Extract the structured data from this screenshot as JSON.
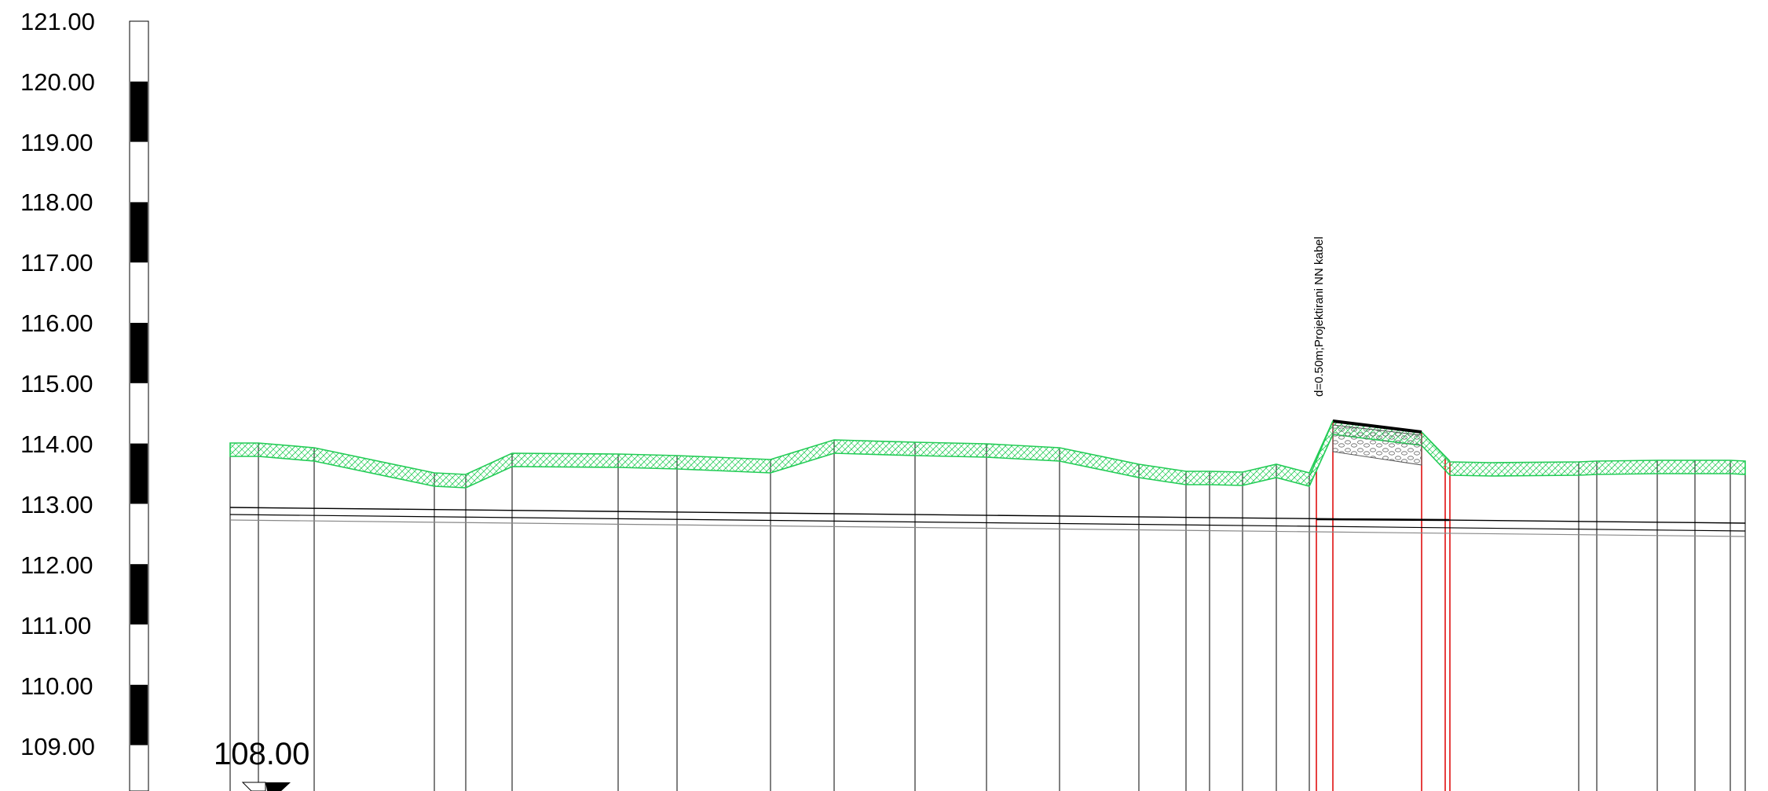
{
  "elevation_axis": {
    "labels": [
      "121.00",
      "120.00",
      "119.00",
      "118.00",
      "117.00",
      "116.00",
      "115.00",
      "114.00",
      "113.00",
      "112.00",
      "111.00",
      "110.00",
      "109.00"
    ]
  },
  "datum": {
    "label": "108.00"
  },
  "annotation": {
    "text": "d=0.50m;Projektirani NN kabel"
  },
  "colors": {
    "terrain": "#22cc55",
    "crossing": "#dd0000",
    "lines": "#000000",
    "grey_line": "#888888"
  }
}
